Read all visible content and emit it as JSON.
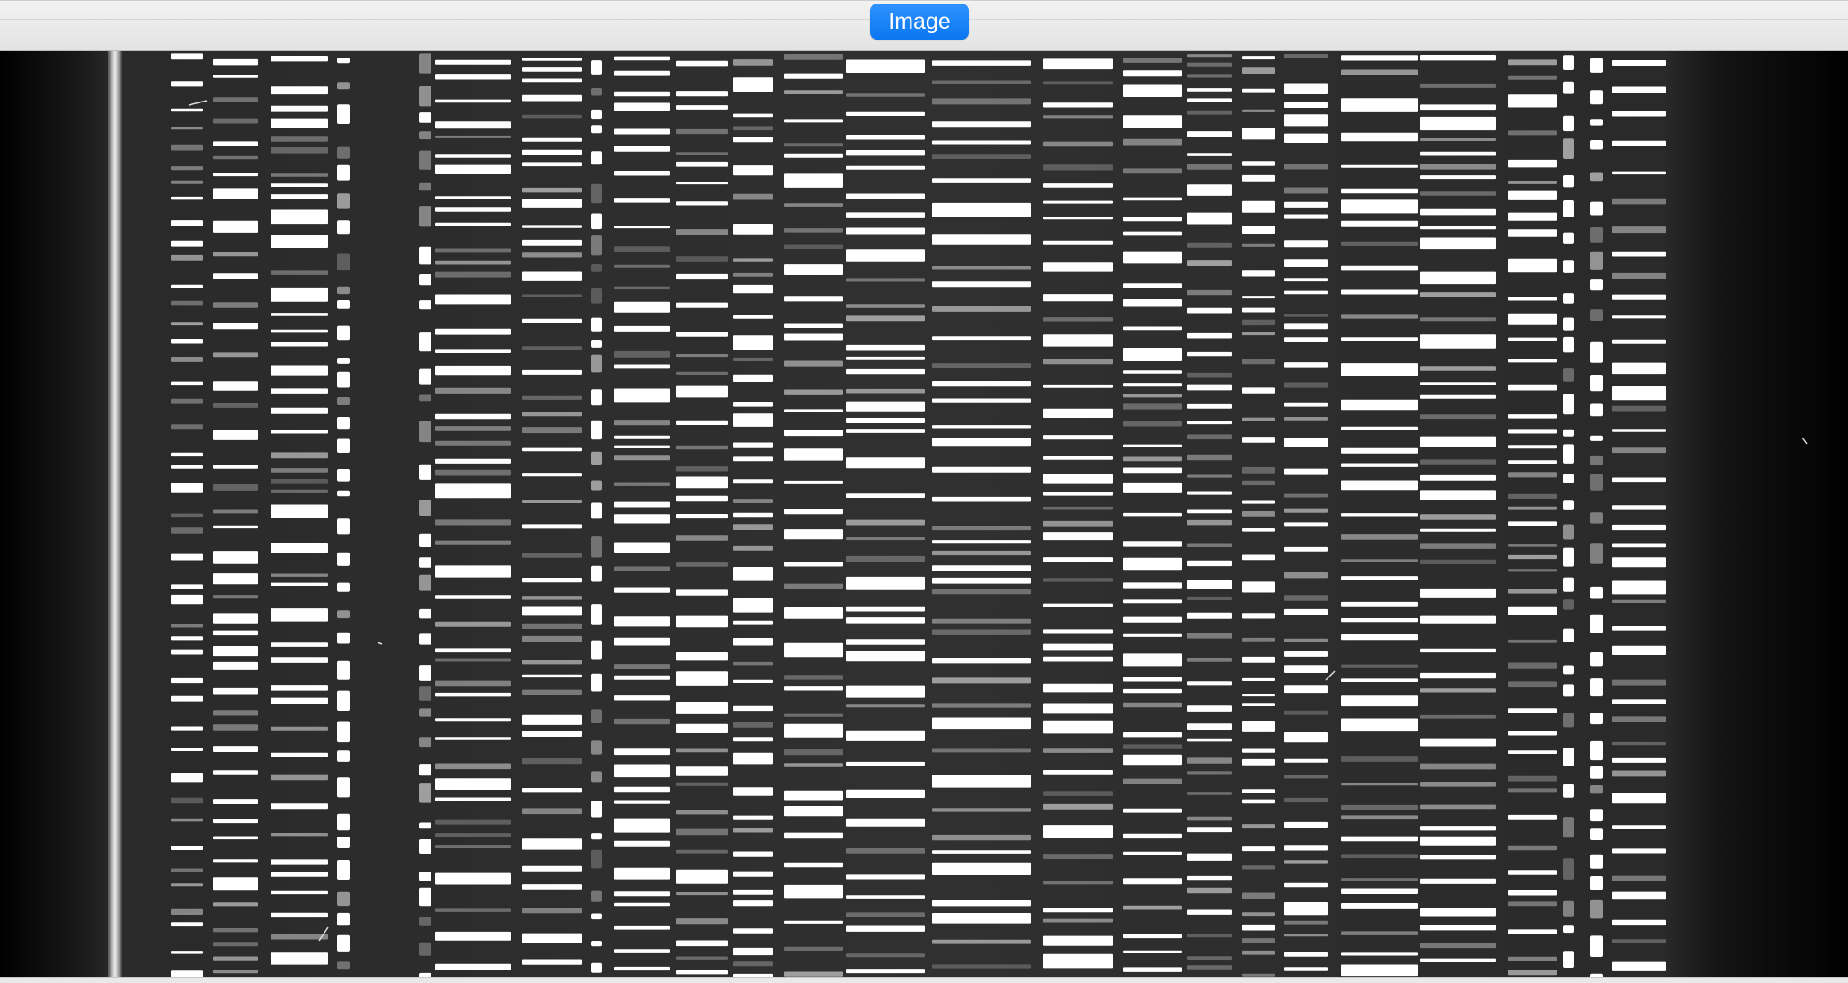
{
  "toolbar": {
    "view_mode_label": "Image"
  },
  "viewer": {
    "image_name": "spectrogram-image",
    "background_color": "#000000",
    "band_color": "#ffffff"
  }
}
